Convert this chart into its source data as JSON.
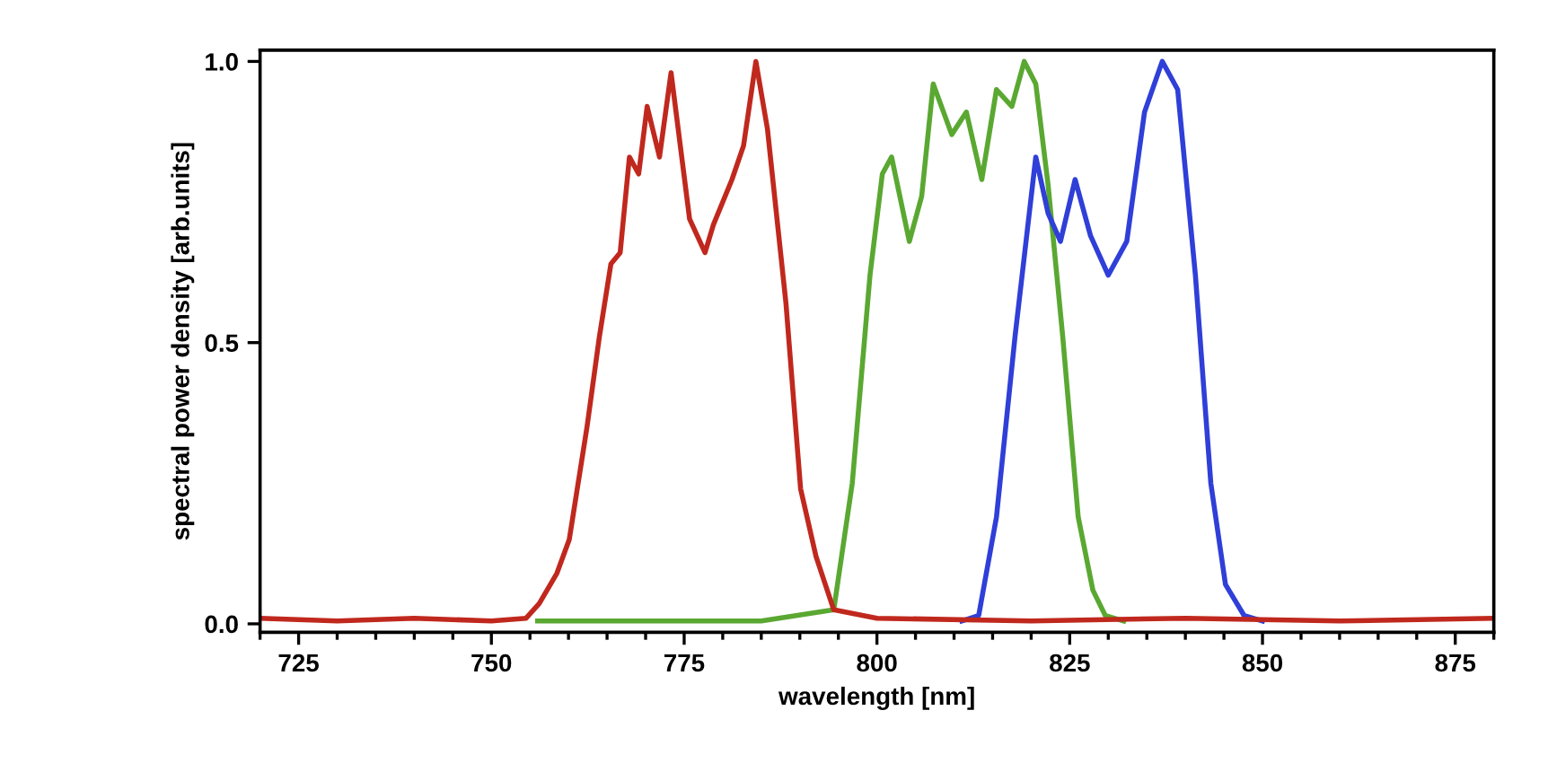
{
  "chart_data": {
    "type": "line",
    "xlabel": "wavelength [nm]",
    "ylabel": "spectral power density [arb.units]",
    "xlim": [
      720,
      880
    ],
    "ylim": [
      -0.015,
      1.02
    ],
    "xticks": [
      {
        "value": 720,
        "label": null
      },
      725,
      {
        "value": 730,
        "label": null
      },
      {
        "value": 735,
        "label": null
      },
      {
        "value": 740,
        "label": null
      },
      {
        "value": 745,
        "label": null
      },
      750,
      {
        "value": 755,
        "label": null
      },
      {
        "value": 760,
        "label": null
      },
      {
        "value": 765,
        "label": null
      },
      {
        "value": 770,
        "label": null
      },
      775,
      {
        "value": 780,
        "label": null
      },
      {
        "value": 785,
        "label": null
      },
      {
        "value": 790,
        "label": null
      },
      {
        "value": 795,
        "label": null
      },
      800,
      {
        "value": 805,
        "label": null
      },
      {
        "value": 810,
        "label": null
      },
      {
        "value": 815,
        "label": null
      },
      {
        "value": 820,
        "label": null
      },
      825,
      {
        "value": 830,
        "label": null
      },
      {
        "value": 835,
        "label": null
      },
      {
        "value": 840,
        "label": null
      },
      {
        "value": 845,
        "label": null
      },
      850,
      {
        "value": 855,
        "label": null
      },
      {
        "value": 860,
        "label": null
      },
      {
        "value": 865,
        "label": null
      },
      {
        "value": 870,
        "label": null
      },
      875,
      {
        "value": 880,
        "label": null
      }
    ],
    "yticks": [
      {
        "value": 0,
        "label": "0.0"
      },
      {
        "value": 0.5,
        "label": "0.5"
      },
      {
        "value": 1,
        "label": "1.0"
      }
    ],
    "grid": false,
    "legend": false,
    "marker": "none",
    "line_style": "solid",
    "series": [
      {
        "color": "#5aa832",
        "x": [
          756,
          770,
          785,
          794.4,
          796.8,
          799.1,
          800.7,
          801.9,
          804.2,
          805.8,
          807.3,
          809.7,
          811.6,
          813.6,
          815.5,
          817.5,
          819.1,
          820.6,
          822.2,
          824.1,
          826.1,
          828.0,
          829.6,
          832
        ],
        "values": [
          0.005,
          0.005,
          0.005,
          0.025,
          0.25,
          0.62,
          0.8,
          0.83,
          0.68,
          0.76,
          0.96,
          0.87,
          0.91,
          0.79,
          0.95,
          0.92,
          1.0,
          0.96,
          0.78,
          0.51,
          0.19,
          0.06,
          0.015,
          0.005
        ]
      },
      {
        "color": "#2f3fd8",
        "x": [
          811,
          813.2,
          815.5,
          817.9,
          820.6,
          822.2,
          823.8,
          825.7,
          827.7,
          830.0,
          832.4,
          834.7,
          837.0,
          839.0,
          841.3,
          843.3,
          845.2,
          847.6,
          850
        ],
        "values": [
          0.005,
          0.015,
          0.19,
          0.51,
          0.83,
          0.73,
          0.68,
          0.79,
          0.69,
          0.62,
          0.68,
          0.91,
          1.0,
          0.95,
          0.62,
          0.25,
          0.07,
          0.015,
          0.005
        ]
      },
      {
        "color": "#c0281e",
        "x": [
          720,
          730,
          740,
          750,
          754.5,
          756.2,
          758.5,
          760.1,
          762.4,
          764,
          765.5,
          766.7,
          767.9,
          769.1,
          770.2,
          771.8,
          773.3,
          774.5,
          775.7,
          777.7,
          778.8,
          781.2,
          782.7,
          784.3,
          785.8,
          788.2,
          790.1,
          792.1,
          794.4,
          800,
          820,
          840,
          860,
          880
        ],
        "values": [
          0.01,
          0.005,
          0.01,
          0.005,
          0.01,
          0.036,
          0.09,
          0.15,
          0.35,
          0.51,
          0.64,
          0.66,
          0.83,
          0.8,
          0.92,
          0.83,
          0.98,
          0.85,
          0.72,
          0.66,
          0.71,
          0.79,
          0.85,
          1.0,
          0.88,
          0.57,
          0.24,
          0.12,
          0.025,
          0.01,
          0.005,
          0.01,
          0.005,
          0.01
        ]
      }
    ]
  }
}
